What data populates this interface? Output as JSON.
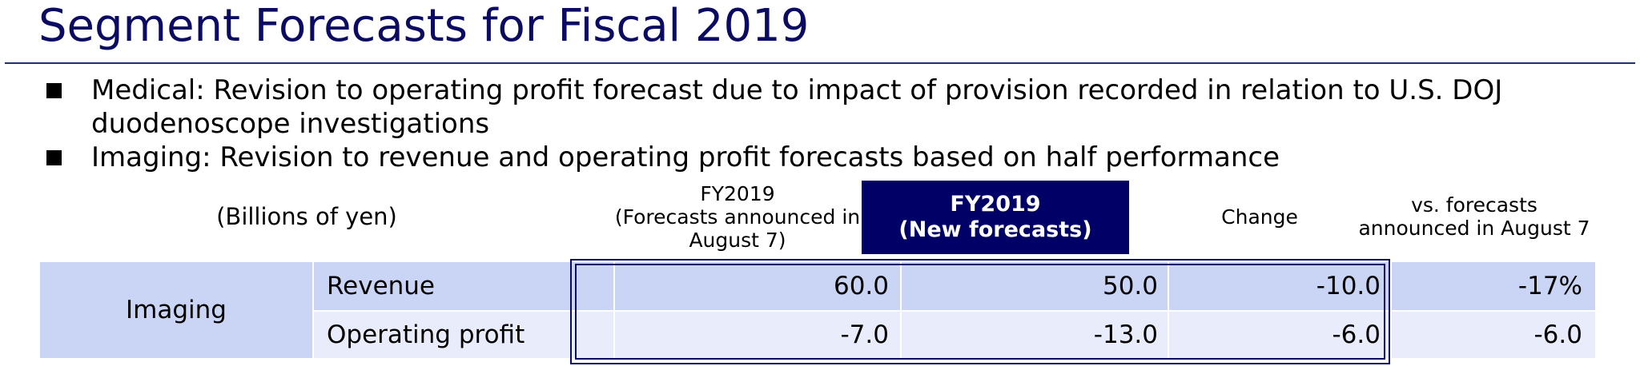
{
  "title": "Segment Forecasts for Fiscal 2019",
  "bullets": [
    "Medical: Revision to operating profit forecast due to impact of provision recorded in relation to U.S. DOJ duodenoscope investigations",
    "Imaging: Revision to revenue and operating profit forecasts based on half performance"
  ],
  "table": {
    "units": "(Billions of yen)",
    "col_old_line1": "FY2019",
    "col_old_line2": "(Forecasts announced in",
    "col_old_line3": "August 7)",
    "col_new_line1": "FY2019",
    "col_new_line2": "(New forecasts)",
    "col_change": "Change",
    "col_vs_line1": "vs. forecasts",
    "col_vs_line2": "announced in August 7",
    "segment": "Imaging",
    "rows": [
      {
        "label": "Revenue",
        "old": "60.0",
        "new": "50.0",
        "change": "-10.0",
        "vs": "-17%"
      },
      {
        "label": "Operating profit",
        "old": "-7.0",
        "new": "-13.0",
        "change": "-6.0",
        "vs": "-6.0"
      }
    ]
  }
}
